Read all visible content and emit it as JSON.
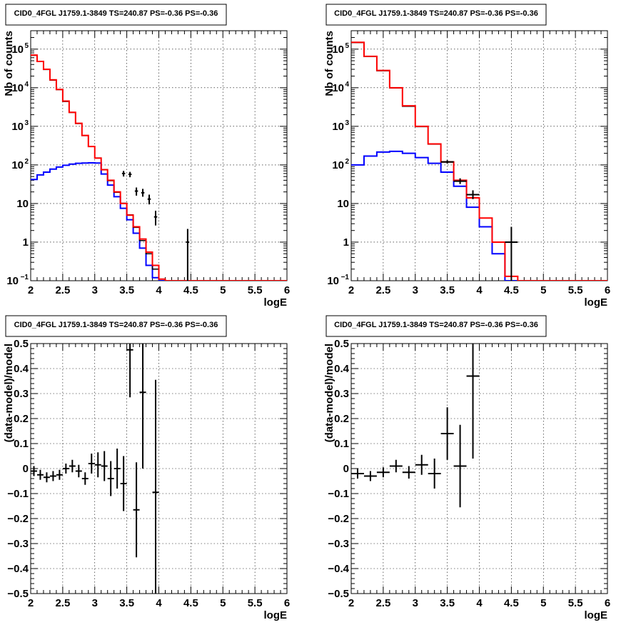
{
  "chart_data": [
    {
      "type": "line",
      "title": "CID0_4FGL J1759.1-3849 TS=240.87 PS=-0.36 PS=-0.36",
      "xlabel": "logE",
      "ylabel": "Nb of counts",
      "xlim": [
        2,
        6
      ],
      "ylim": [
        0.1,
        300000
      ],
      "log_y": true,
      "grid": true,
      "xticks": [
        "2",
        "2.5",
        "3",
        "3.5",
        "4",
        "4.5",
        "5",
        "5.5",
        "6"
      ],
      "yticks": [
        {
          "value": 0.1,
          "label": "10",
          "sup": "−1"
        },
        {
          "value": 1,
          "label": "1",
          "sup": ""
        },
        {
          "value": 10,
          "label": "10",
          "sup": ""
        },
        {
          "value": 100,
          "label": "10",
          "sup": "2"
        },
        {
          "value": 1000,
          "label": "10",
          "sup": "3"
        },
        {
          "value": 10000,
          "label": "10",
          "sup": "4"
        },
        {
          "value": 100000,
          "label": "10",
          "sup": "5"
        }
      ],
      "bin_edges_start": 2.0,
      "bin_width": 0.1,
      "series": [
        {
          "style": "hist",
          "color": "#ff0000",
          "values": [
            70000,
            48000,
            30000,
            16000,
            9000,
            4500,
            2300,
            1200,
            580,
            300,
            150,
            75,
            40,
            20,
            10,
            5,
            2.5,
            1.2,
            0.55,
            0.25,
            0.11,
            0.1,
            0.1,
            0.1,
            0.1,
            0.1,
            0.1,
            0.1,
            0.1,
            0.1,
            0.1,
            0.1,
            0.1,
            0.1,
            0.1,
            0.1,
            0.1,
            0.1,
            0.1,
            0.1
          ]
        },
        {
          "style": "hist",
          "color": "#000000",
          "values": [
            69000,
            47500,
            29500,
            15700,
            8900,
            4400,
            2280,
            1180,
            575,
            298,
            152,
            76,
            39,
            19.5,
            10.2,
            5.1,
            2.4,
            1.1,
            0.5,
            0.2
          ]
        },
        {
          "style": "hist",
          "color": "#0000ff",
          "values": [
            45000,
            32000,
            21000,
            12500,
            7400,
            3900,
            2000,
            1050,
            520,
            260,
            125,
            58,
            30,
            15,
            7.5,
            3.8,
            1.7,
            0.7,
            0.25,
            0.12,
            0.1,
            0.1,
            0.1,
            0.1,
            0.1,
            0.1,
            0.1,
            0.1,
            0.1,
            0.1,
            0.1,
            0.1,
            0.1,
            0.1,
            0.1,
            0.1,
            0.1,
            0.1,
            0.1,
            0.1
          ]
        },
        {
          "style": "errorbars",
          "color": "#000000",
          "points": [
            {
              "x": 3.45,
              "y": 60,
              "lo": 50,
              "hi": 70,
              "xerr": 0.025
            },
            {
              "x": 3.55,
              "y": 57,
              "lo": 48,
              "hi": 66,
              "xerr": 0.025
            },
            {
              "x": 3.65,
              "y": 21,
              "lo": 16,
              "hi": 26,
              "xerr": 0.025
            },
            {
              "x": 3.75,
              "y": 19,
              "lo": 15,
              "hi": 24,
              "xerr": 0.025
            },
            {
              "x": 3.85,
              "y": 13,
              "lo": 9.5,
              "hi": 17,
              "xerr": 0.025
            },
            {
              "x": 3.95,
              "y": 4.5,
              "lo": 2.7,
              "hi": 6.5,
              "xerr": 0.025
            },
            {
              "x": 4.45,
              "y": 1,
              "lo": 0.1,
              "hi": 2.2,
              "xerr": 0.025
            }
          ]
        }
      ],
      "blue_low": [
        42,
        55,
        65,
        78,
        88,
        98,
        105,
        110,
        112,
        113,
        112,
        110,
        105,
        100,
        95,
        90,
        82,
        75,
        66,
        58
      ]
    },
    {
      "type": "line",
      "title": "CID0_4FGL J1759.1-3849 TS=240.87 PS=-0.36 PS=-0.36",
      "xlabel": "logE",
      "ylabel": "Nb of counts",
      "xlim": [
        2,
        6
      ],
      "ylim": [
        0.1,
        300000
      ],
      "log_y": true,
      "grid": true,
      "xticks": [
        "2",
        "2.5",
        "3",
        "3.5",
        "4",
        "4.5",
        "5",
        "5.5",
        "6"
      ],
      "yticks": [
        {
          "value": 0.1,
          "label": "10",
          "sup": "−1"
        },
        {
          "value": 1,
          "label": "1",
          "sup": ""
        },
        {
          "value": 10,
          "label": "10",
          "sup": ""
        },
        {
          "value": 100,
          "label": "10",
          "sup": "2"
        },
        {
          "value": 1000,
          "label": "10",
          "sup": "3"
        },
        {
          "value": 10000,
          "label": "10",
          "sup": "4"
        },
        {
          "value": 100000,
          "label": "10",
          "sup": "5"
        }
      ],
      "bin_edges_start": 2.0,
      "bin_width": 0.2,
      "series": [
        {
          "style": "hist",
          "color": "#ff0000",
          "values": [
            150000,
            65000,
            28000,
            10000,
            3400,
            1000,
            350,
            120,
            40,
            14,
            4.2,
            1.0,
            0.13,
            0.1,
            0.1,
            0.1,
            0.1,
            0.1,
            0.1,
            0.1
          ]
        },
        {
          "style": "hist",
          "color": "#000000",
          "values": [
            148000,
            64000,
            27500,
            9800,
            3300,
            980,
            345,
            118
          ]
        },
        {
          "style": "hist",
          "color": "#0000ff",
          "values": [
            105000,
            48000,
            22000,
            8300,
            2900,
            880,
            300,
            95,
            28,
            8,
            2.5,
            0.5,
            0.1,
            0.1,
            0.1,
            0.1,
            0.1,
            0.1,
            0.1,
            0.1
          ]
        },
        {
          "style": "errorbars",
          "color": "#000000",
          "points": [
            {
              "x": 3.5,
              "y": 120,
              "lo": 108,
              "hi": 132,
              "xerr": 0.1
            },
            {
              "x": 3.7,
              "y": 38,
              "lo": 32,
              "hi": 45,
              "xerr": 0.1
            },
            {
              "x": 3.9,
              "y": 17,
              "lo": 13,
              "hi": 22,
              "xerr": 0.1
            },
            {
              "x": 4.5,
              "y": 1,
              "lo": 0.1,
              "hi": 2.5,
              "xerr": 0.1
            }
          ]
        }
      ],
      "blue_low": [
        100,
        170,
        215,
        225,
        200,
        155,
        110,
        65
      ]
    },
    {
      "type": "scatter",
      "title": "CID0_4FGL J1759.1-3849 TS=240.87 PS=-0.36 PS=-0.36",
      "xlabel": "logE",
      "ylabel": "(data-model)/model",
      "xlim": [
        2,
        6
      ],
      "ylim": [
        -0.5,
        0.5
      ],
      "log_y": false,
      "grid": true,
      "xticks": [
        "2",
        "2.5",
        "3",
        "3.5",
        "4",
        "4.5",
        "5",
        "5.5",
        "6"
      ],
      "yticks": [
        {
          "value": -0.5,
          "label": "−0.5"
        },
        {
          "value": -0.4,
          "label": "−0.4"
        },
        {
          "value": -0.3,
          "label": "−0.3"
        },
        {
          "value": -0.2,
          "label": "−0.2"
        },
        {
          "value": -0.1,
          "label": "−0.1"
        },
        {
          "value": 0,
          "label": "0"
        },
        {
          "value": 0.1,
          "label": "0.1"
        },
        {
          "value": 0.2,
          "label": "0.2"
        },
        {
          "value": 0.3,
          "label": "0.3"
        },
        {
          "value": 0.4,
          "label": "0.4"
        },
        {
          "value": 0.5,
          "label": "0.5"
        }
      ],
      "points": [
        {
          "x": 2.05,
          "y": -0.01,
          "err": 0.02
        },
        {
          "x": 2.15,
          "y": -0.025,
          "err": 0.02
        },
        {
          "x": 2.25,
          "y": -0.035,
          "err": 0.02
        },
        {
          "x": 2.35,
          "y": -0.03,
          "err": 0.02
        },
        {
          "x": 2.45,
          "y": -0.025,
          "err": 0.02
        },
        {
          "x": 2.55,
          "y": 0.0,
          "err": 0.02
        },
        {
          "x": 2.65,
          "y": 0.01,
          "err": 0.025
        },
        {
          "x": 2.75,
          "y": -0.01,
          "err": 0.025
        },
        {
          "x": 2.85,
          "y": -0.04,
          "err": 0.025
        },
        {
          "x": 2.95,
          "y": 0.02,
          "err": 0.04
        },
        {
          "x": 3.05,
          "y": 0.015,
          "err": 0.05
        },
        {
          "x": 3.15,
          "y": 0.01,
          "err": 0.06
        },
        {
          "x": 3.25,
          "y": -0.04,
          "err": 0.07
        },
        {
          "x": 3.35,
          "y": 0.0,
          "err": 0.08
        },
        {
          "x": 3.45,
          "y": -0.06,
          "err": 0.11
        },
        {
          "x": 3.55,
          "y": 0.475,
          "err": 0.19
        },
        {
          "x": 3.65,
          "y": -0.165,
          "err": 0.19
        },
        {
          "x": 3.75,
          "y": 0.305,
          "err": 0.305
        },
        {
          "x": 3.95,
          "y": -0.095,
          "err": 0.45
        }
      ],
      "xerr": 0.05
    },
    {
      "type": "scatter",
      "title": "CID0_4FGL J1759.1-3849 TS=240.87 PS=-0.36 PS=-0.36",
      "xlabel": "logE",
      "ylabel": "(data-model)/model",
      "xlim": [
        2,
        6
      ],
      "ylim": [
        -0.5,
        0.5
      ],
      "log_y": false,
      "grid": true,
      "xticks": [
        "2",
        "2.5",
        "3",
        "3.5",
        "4",
        "4.5",
        "5",
        "5.5",
        "6"
      ],
      "yticks": [
        {
          "value": -0.5,
          "label": "−0.5"
        },
        {
          "value": -0.4,
          "label": "−0.4"
        },
        {
          "value": -0.3,
          "label": "−0.3"
        },
        {
          "value": -0.2,
          "label": "−0.2"
        },
        {
          "value": -0.1,
          "label": "−0.1"
        },
        {
          "value": 0,
          "label": "0"
        },
        {
          "value": 0.1,
          "label": "0.1"
        },
        {
          "value": 0.2,
          "label": "0.2"
        },
        {
          "value": 0.3,
          "label": "0.3"
        },
        {
          "value": 0.4,
          "label": "0.4"
        },
        {
          "value": 0.5,
          "label": "0.5"
        }
      ],
      "points": [
        {
          "x": 2.1,
          "y": -0.02,
          "err": 0.02
        },
        {
          "x": 2.3,
          "y": -0.03,
          "err": 0.02
        },
        {
          "x": 2.5,
          "y": -0.015,
          "err": 0.02
        },
        {
          "x": 2.7,
          "y": 0.01,
          "err": 0.025
        },
        {
          "x": 2.9,
          "y": -0.015,
          "err": 0.025
        },
        {
          "x": 3.1,
          "y": 0.015,
          "err": 0.04
        },
        {
          "x": 3.3,
          "y": -0.02,
          "err": 0.06
        },
        {
          "x": 3.5,
          "y": 0.14,
          "err": 0.105
        },
        {
          "x": 3.7,
          "y": 0.01,
          "err": 0.165
        },
        {
          "x": 3.9,
          "y": 0.37,
          "err": 0.33
        }
      ],
      "xerr": 0.1
    }
  ]
}
